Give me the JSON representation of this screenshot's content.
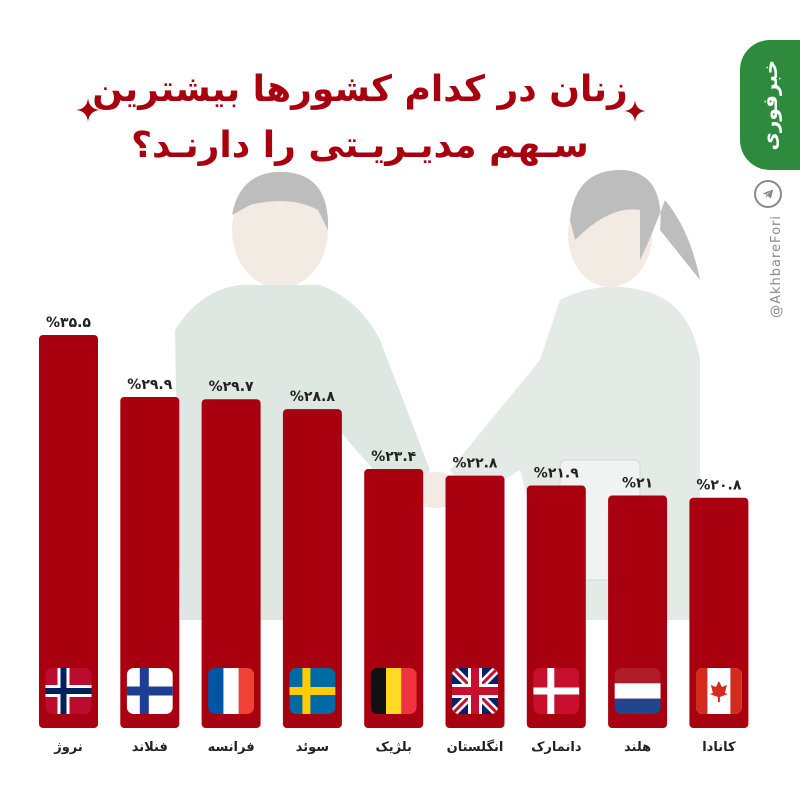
{
  "header": {
    "title_line1": "زنان در کدام کشورها بیشترین",
    "title_line2": "سـهم مدیـریـتی را دارنـد؟"
  },
  "brand": {
    "logo_text": "خبرفوری",
    "handle": "@AkhbareFori",
    "telegram_icon": "telegram-icon",
    "color": "#2e8b3e"
  },
  "colors": {
    "bar": "#a8000e",
    "title": "#a8000e"
  },
  "chart_data": {
    "type": "bar",
    "title": "زنان در کدام کشورها بیشترین سهم مدیریتی را دارند؟",
    "categories": [
      "نروژ",
      "فنلاند",
      "فرانسه",
      "سوئد",
      "بلژیک",
      "انگلستان",
      "دانمارک",
      "هلند",
      "کانادا"
    ],
    "values": [
      35.5,
      29.9,
      29.7,
      28.8,
      23.4,
      22.8,
      21.9,
      21,
      20.8
    ],
    "value_labels": [
      "%۳۵.۵",
      "%۲۹.۹",
      "%۲۹.۷",
      "%۲۸.۸",
      "%۲۳.۴",
      "%۲۲.۸",
      "%۲۱.۹",
      "%۲۱",
      "%۲۰.۸"
    ],
    "flags": [
      "norway",
      "finland",
      "france",
      "sweden",
      "belgium",
      "united-kingdom",
      "denmark",
      "netherlands",
      "canada"
    ],
    "xlabel": "",
    "ylabel": "",
    "ylim": [
      0,
      35.5
    ],
    "grid": false,
    "legend": "none"
  }
}
